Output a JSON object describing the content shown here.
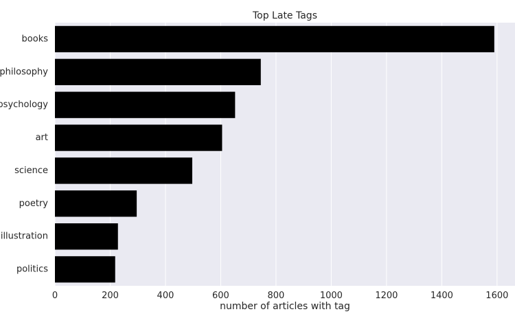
{
  "chart_data": {
    "type": "bar",
    "orientation": "horizontal",
    "title": "Top Late Tags",
    "xlabel": "number of articles with tag",
    "ylabel": "",
    "categories": [
      "books",
      "philosophy",
      "psychology",
      "art",
      "science",
      "poetry",
      "illustration",
      "politics"
    ],
    "values": [
      1590,
      745,
      652,
      605,
      497,
      296,
      228,
      218
    ],
    "xlim": [
      0,
      1665
    ],
    "xticks": [
      0,
      200,
      400,
      600,
      800,
      1000,
      1200,
      1400,
      1600
    ],
    "xtick_labels": [
      "0",
      "200",
      "400",
      "600",
      "800",
      "1000",
      "1200",
      "1400",
      "1600"
    ],
    "grid": "vertical",
    "legend": "none",
    "colors": {
      "bar": "#000000",
      "plot_background": "#eaeaf2",
      "grid": "#ffffff",
      "text": "#262626"
    }
  }
}
